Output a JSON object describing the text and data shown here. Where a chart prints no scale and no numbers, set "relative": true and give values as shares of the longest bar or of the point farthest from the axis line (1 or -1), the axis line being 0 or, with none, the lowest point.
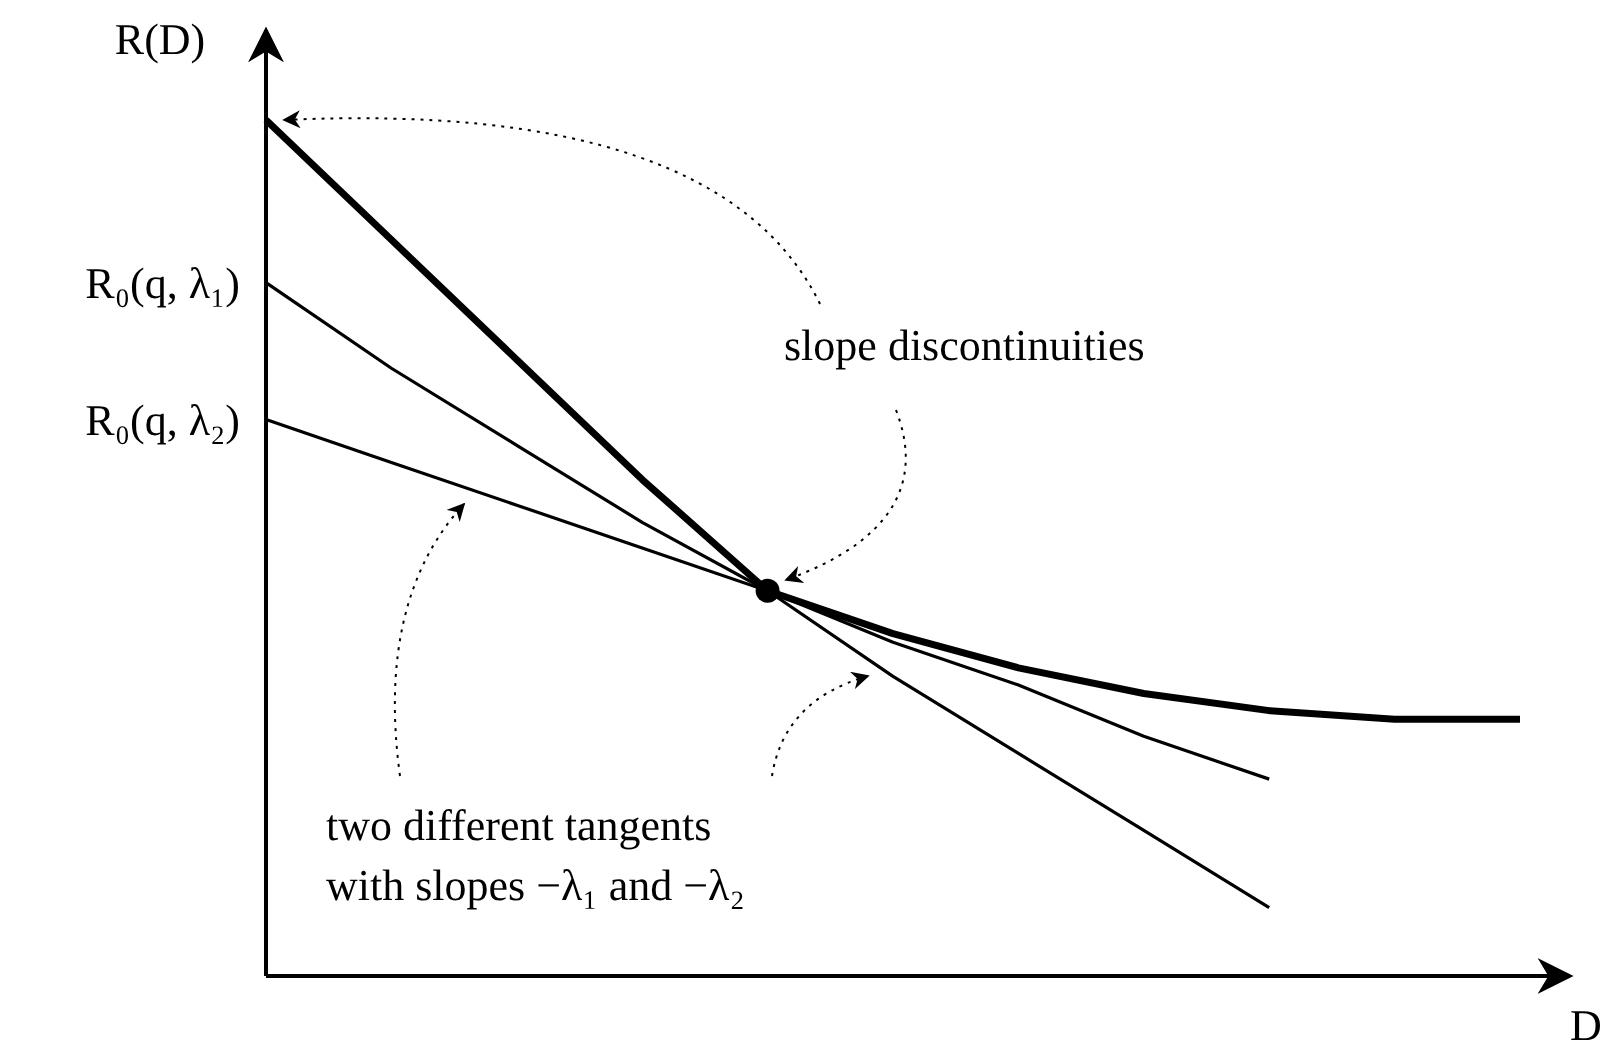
{
  "chart_data": {
    "type": "line",
    "relative": true,
    "xlabel": "D",
    "ylabel": "R(D)",
    "categories": [
      null,
      null,
      null,
      null,
      null,
      null,
      null,
      null,
      null,
      null,
      null
    ],
    "series": [
      {
        "color": "#000000",
        "values": [
          1,
          0.86,
          0.72,
          0.58,
          0.45,
          0.4,
          0.36,
          0.33,
          0.31,
          0.3,
          0.3
        ]
      },
      {
        "color": "#000000",
        "values": [
          0.81,
          0.71,
          0.62,
          0.53,
          0.45,
          0.35,
          0.26,
          0.17,
          0.08,
          null,
          null
        ]
      },
      {
        "color": "#000000",
        "values": [
          0.65,
          0.6,
          0.55,
          0.5,
          0.45,
          0.39,
          0.34,
          0.28,
          0.23,
          null,
          null
        ]
      }
    ],
    "annotations": [
      "R₀(q, λ₁)",
      "R₀(q, λ₂)",
      "slope discontinuities",
      "two different tangents\nwith slopes −λ₁ and −λ₂"
    ]
  }
}
